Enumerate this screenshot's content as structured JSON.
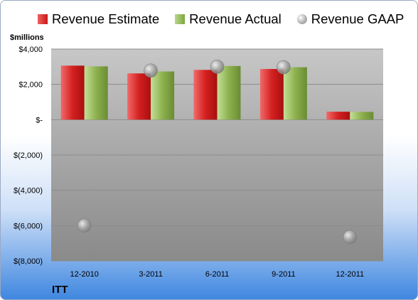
{
  "company": "ITT",
  "unit_label": "$millions",
  "legend": {
    "estimate": "Revenue Estimate",
    "actual": "Revenue Actual",
    "gaap": "Revenue GAAP"
  },
  "colors": {
    "estimate": "#d42020",
    "actual": "#8db14e",
    "gaap": "#a6a6a6",
    "plot_background": "#a5a5a5"
  },
  "chart_data": {
    "type": "bar",
    "categories": [
      "12-2010",
      "3-2011",
      "6-2011",
      "9-2011",
      "12-2011"
    ],
    "series": [
      {
        "name": "Revenue Estimate",
        "type": "bar",
        "values": [
          3060,
          2620,
          2820,
          2870,
          450
        ]
      },
      {
        "name": "Revenue Actual",
        "type": "bar",
        "values": [
          3020,
          2730,
          3040,
          2970,
          440
        ]
      },
      {
        "name": "Revenue GAAP",
        "type": "scatter",
        "values": [
          -6000,
          2780,
          3000,
          2970,
          -6650
        ]
      }
    ],
    "ylim": [
      -8000,
      4000
    ],
    "yticks": [
      4000,
      2000,
      0,
      -2000,
      -4000,
      -6000,
      -8000
    ],
    "ytick_labels": [
      "$4,000",
      "$2,000",
      "$-",
      "$(2,000)",
      "$(4,000)",
      "$(6,000)",
      "$(8,000)"
    ],
    "grid": true,
    "legend_position": "top"
  }
}
